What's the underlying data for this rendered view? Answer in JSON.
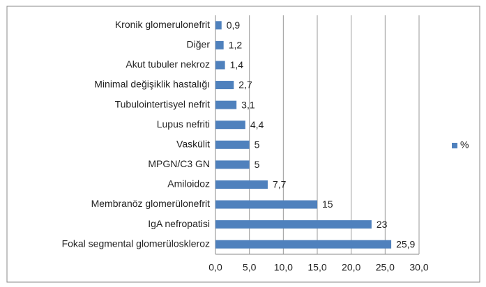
{
  "chart_data": {
    "type": "barh",
    "categories": [
      "Kronik glomerulonefrit",
      "Diğer",
      "Akut tubuler nekroz",
      "Minimal değişiklik hastalığı",
      "Tubulointertisyel nefrit",
      "Lupus nefriti",
      "Vaskülit",
      "MPGN/C3 GN",
      "Amiloidoz",
      "Membranöz glomerülonefrit",
      "IgA nefropatisi",
      "Fokal segmental  glomerüloskleroz"
    ],
    "series": [
      {
        "name": "%",
        "color": "#4f81bd",
        "values": [
          0.9,
          1.2,
          1.4,
          2.7,
          3.1,
          4.4,
          5,
          5,
          7.7,
          15,
          23,
          25.9
        ],
        "value_labels": [
          "0,9",
          "1,2",
          "1,4",
          "2,7",
          "3,1",
          "4,4",
          "5",
          "5",
          "7,7",
          "15",
          "23",
          "25,9"
        ]
      }
    ],
    "xlim": [
      0,
      30
    ],
    "xticks": [
      {
        "value": 0,
        "label": "0,0"
      },
      {
        "value": 5,
        "label": "5,0"
      },
      {
        "value": 10,
        "label": "10,0"
      },
      {
        "value": 15,
        "label": "15,0"
      },
      {
        "value": 20,
        "label": "20,0"
      },
      {
        "value": 25,
        "label": "25,0"
      },
      {
        "value": 30,
        "label": "30,0"
      }
    ],
    "grid": true,
    "legend": "right"
  }
}
